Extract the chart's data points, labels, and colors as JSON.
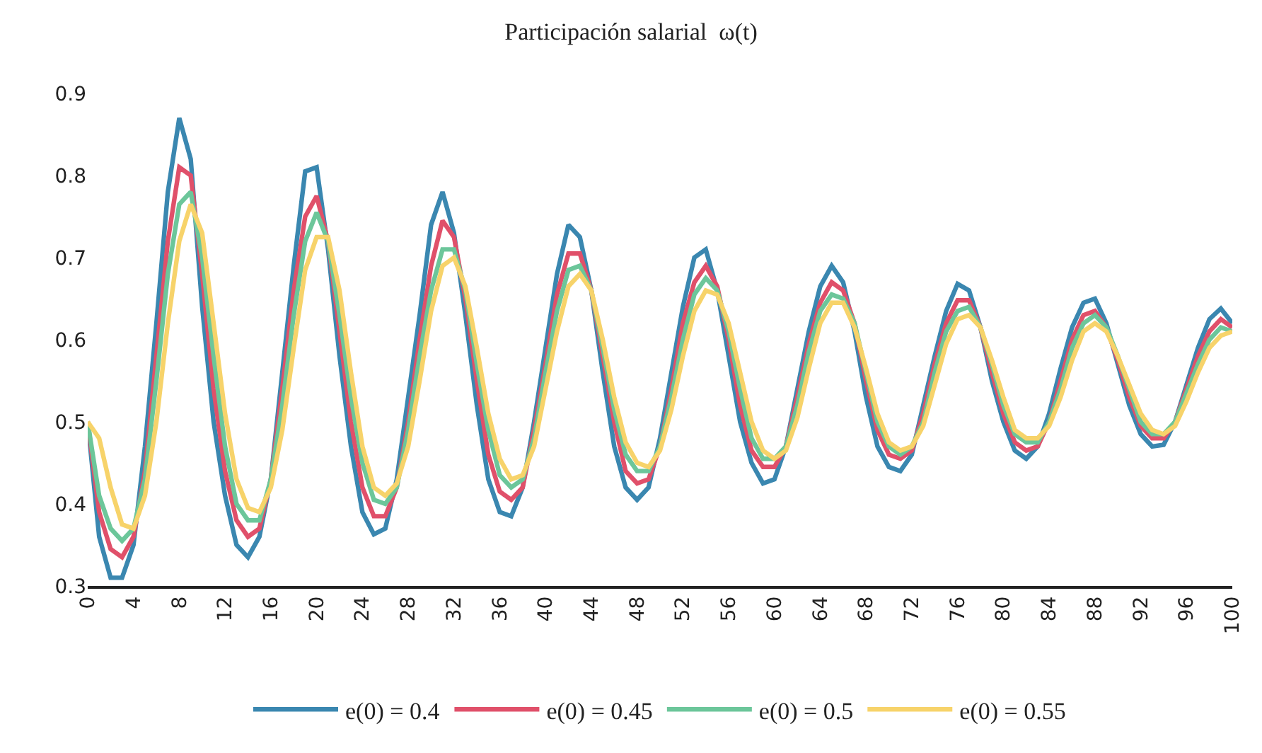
{
  "chart_data": {
    "type": "line",
    "title": "Participación salarial  ω(t)",
    "x": [
      0,
      1,
      2,
      3,
      4,
      5,
      6,
      7,
      8,
      9,
      10,
      11,
      12,
      13,
      14,
      15,
      16,
      17,
      18,
      19,
      20,
      21,
      22,
      23,
      24,
      25,
      26,
      27,
      28,
      29,
      30,
      31,
      32,
      33,
      34,
      35,
      36,
      37,
      38,
      39,
      40,
      41,
      42,
      43,
      44,
      45,
      46,
      47,
      48,
      49,
      50,
      51,
      52,
      53,
      54,
      55,
      56,
      57,
      58,
      59,
      60,
      61,
      62,
      63,
      64,
      65,
      66,
      67,
      68,
      69,
      70,
      71,
      72,
      73,
      74,
      75,
      76,
      77,
      78,
      79,
      80,
      81,
      82,
      83,
      84,
      85,
      86,
      87,
      88,
      89,
      90,
      91,
      92,
      93,
      94,
      95,
      96,
      97,
      98,
      99,
      100
    ],
    "xlim": [
      0,
      100
    ],
    "xticks": [
      0,
      4,
      8,
      12,
      16,
      20,
      24,
      28,
      32,
      36,
      40,
      44,
      48,
      52,
      56,
      60,
      64,
      68,
      72,
      76,
      80,
      84,
      88,
      92,
      96,
      100
    ],
    "ylim": [
      0.3,
      0.9
    ],
    "yticks": [
      0.3,
      0.4,
      0.5,
      0.6,
      0.7,
      0.8,
      0.9
    ],
    "legend": "bottom",
    "marker": "none",
    "line_style": "solid",
    "series": [
      {
        "name": "e(0) = 0.4",
        "color": "#3a87b0",
        "values": [
          0.5,
          0.36,
          0.31,
          0.31,
          0.35,
          0.47,
          0.62,
          0.78,
          0.87,
          0.82,
          0.64,
          0.5,
          0.41,
          0.35,
          0.335,
          0.36,
          0.43,
          0.56,
          0.69,
          0.805,
          0.81,
          0.71,
          0.58,
          0.47,
          0.39,
          0.363,
          0.37,
          0.43,
          0.53,
          0.63,
          0.74,
          0.78,
          0.73,
          0.63,
          0.52,
          0.43,
          0.39,
          0.385,
          0.42,
          0.5,
          0.59,
          0.68,
          0.74,
          0.725,
          0.66,
          0.56,
          0.47,
          0.42,
          0.405,
          0.42,
          0.48,
          0.56,
          0.64,
          0.7,
          0.71,
          0.66,
          0.58,
          0.5,
          0.45,
          0.425,
          0.43,
          0.47,
          0.54,
          0.61,
          0.665,
          0.69,
          0.67,
          0.61,
          0.53,
          0.47,
          0.445,
          0.44,
          0.46,
          0.52,
          0.58,
          0.635,
          0.668,
          0.66,
          0.615,
          0.55,
          0.5,
          0.465,
          0.455,
          0.47,
          0.51,
          0.565,
          0.615,
          0.645,
          0.65,
          0.62,
          0.57,
          0.52,
          0.485,
          0.47,
          0.472,
          0.5,
          0.545,
          0.59,
          0.625,
          0.638,
          0.62
        ]
      },
      {
        "name": "e(0) = 0.45",
        "color": "#e0506a",
        "values": [
          0.5,
          0.39,
          0.345,
          0.335,
          0.36,
          0.44,
          0.58,
          0.72,
          0.81,
          0.8,
          0.68,
          0.54,
          0.44,
          0.38,
          0.36,
          0.37,
          0.43,
          0.54,
          0.66,
          0.75,
          0.775,
          0.72,
          0.61,
          0.5,
          0.42,
          0.385,
          0.385,
          0.42,
          0.5,
          0.6,
          0.69,
          0.745,
          0.725,
          0.65,
          0.55,
          0.46,
          0.415,
          0.405,
          0.42,
          0.49,
          0.57,
          0.655,
          0.705,
          0.705,
          0.66,
          0.58,
          0.5,
          0.44,
          0.425,
          0.43,
          0.47,
          0.54,
          0.62,
          0.67,
          0.69,
          0.665,
          0.6,
          0.52,
          0.465,
          0.445,
          0.445,
          0.47,
          0.53,
          0.595,
          0.645,
          0.67,
          0.66,
          0.62,
          0.55,
          0.49,
          0.46,
          0.455,
          0.465,
          0.51,
          0.57,
          0.62,
          0.648,
          0.648,
          0.615,
          0.56,
          0.51,
          0.475,
          0.465,
          0.47,
          0.5,
          0.55,
          0.6,
          0.63,
          0.635,
          0.615,
          0.575,
          0.53,
          0.495,
          0.48,
          0.48,
          0.5,
          0.54,
          0.58,
          0.61,
          0.625,
          0.615
        ]
      },
      {
        "name": "e(0) = 0.5",
        "color": "#6cc69a",
        "values": [
          0.5,
          0.41,
          0.37,
          0.355,
          0.37,
          0.43,
          0.55,
          0.68,
          0.765,
          0.78,
          0.7,
          0.58,
          0.47,
          0.4,
          0.38,
          0.38,
          0.43,
          0.52,
          0.63,
          0.72,
          0.755,
          0.72,
          0.63,
          0.53,
          0.45,
          0.405,
          0.4,
          0.42,
          0.49,
          0.58,
          0.66,
          0.71,
          0.71,
          0.66,
          0.57,
          0.49,
          0.435,
          0.42,
          0.43,
          0.48,
          0.56,
          0.635,
          0.685,
          0.69,
          0.66,
          0.59,
          0.515,
          0.46,
          0.44,
          0.44,
          0.47,
          0.53,
          0.6,
          0.655,
          0.675,
          0.66,
          0.61,
          0.54,
          0.48,
          0.455,
          0.455,
          0.47,
          0.52,
          0.585,
          0.635,
          0.655,
          0.65,
          0.62,
          0.56,
          0.5,
          0.47,
          0.46,
          0.47,
          0.5,
          0.56,
          0.61,
          0.635,
          0.64,
          0.615,
          0.57,
          0.52,
          0.485,
          0.475,
          0.475,
          0.5,
          0.54,
          0.59,
          0.62,
          0.63,
          0.615,
          0.58,
          0.54,
          0.5,
          0.485,
          0.485,
          0.5,
          0.535,
          0.57,
          0.6,
          0.615,
          0.61
        ]
      },
      {
        "name": "e(0) = 0.55",
        "color": "#f7d36a",
        "values": [
          0.5,
          0.48,
          0.42,
          0.375,
          0.37,
          0.41,
          0.5,
          0.62,
          0.72,
          0.765,
          0.73,
          0.62,
          0.51,
          0.43,
          0.395,
          0.39,
          0.42,
          0.49,
          0.59,
          0.685,
          0.725,
          0.725,
          0.66,
          0.56,
          0.47,
          0.42,
          0.41,
          0.425,
          0.47,
          0.55,
          0.635,
          0.69,
          0.7,
          0.665,
          0.59,
          0.51,
          0.455,
          0.43,
          0.435,
          0.47,
          0.54,
          0.61,
          0.665,
          0.68,
          0.66,
          0.6,
          0.53,
          0.475,
          0.45,
          0.445,
          0.465,
          0.515,
          0.58,
          0.635,
          0.66,
          0.655,
          0.62,
          0.56,
          0.5,
          0.465,
          0.455,
          0.465,
          0.505,
          0.565,
          0.62,
          0.645,
          0.645,
          0.615,
          0.565,
          0.51,
          0.475,
          0.465,
          0.47,
          0.495,
          0.545,
          0.595,
          0.625,
          0.63,
          0.615,
          0.575,
          0.53,
          0.49,
          0.48,
          0.48,
          0.495,
          0.53,
          0.575,
          0.61,
          0.62,
          0.61,
          0.58,
          0.545,
          0.51,
          0.49,
          0.485,
          0.495,
          0.525,
          0.56,
          0.59,
          0.605,
          0.61
        ]
      }
    ]
  }
}
